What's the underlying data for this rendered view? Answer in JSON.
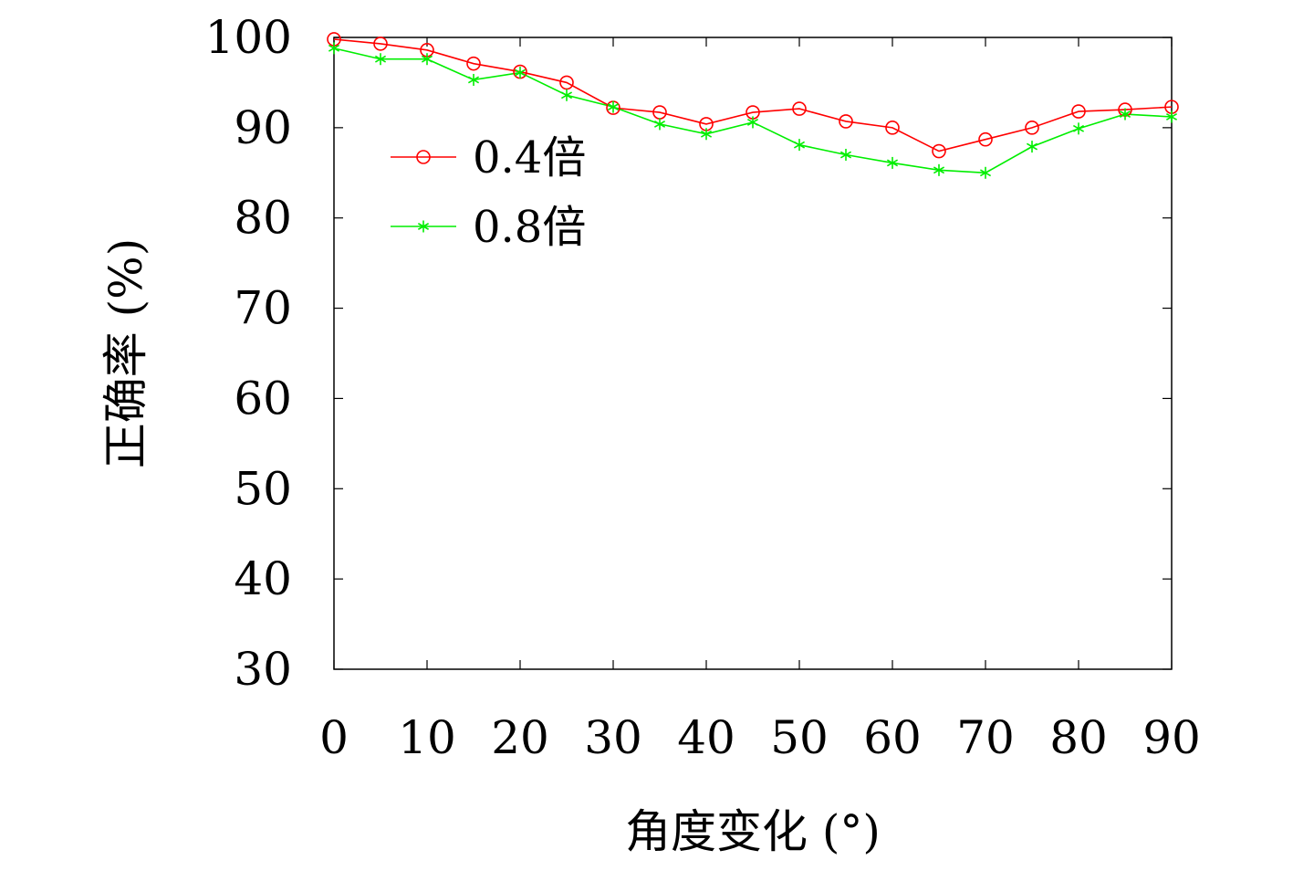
{
  "chart_data": {
    "type": "line",
    "title": "",
    "xlabel": "角度变化 (°)",
    "ylabel": "正确率 (%)",
    "xlim": [
      0,
      90
    ],
    "ylim": [
      30,
      100
    ],
    "xticks": [
      0,
      10,
      20,
      30,
      40,
      50,
      60,
      70,
      80,
      90
    ],
    "yticks": [
      30,
      40,
      50,
      60,
      70,
      80,
      90,
      100
    ],
    "grid": false,
    "legend_position": "upper-left",
    "x": [
      0,
      5,
      10,
      15,
      20,
      25,
      30,
      35,
      40,
      45,
      50,
      55,
      60,
      65,
      70,
      75,
      80,
      85,
      90
    ],
    "series": [
      {
        "name": "0.4倍",
        "color": "#ff0000",
        "marker": "circle",
        "values": [
          99.8,
          99.3,
          98.6,
          97.1,
          96.2,
          95.0,
          92.2,
          91.7,
          90.4,
          91.7,
          92.1,
          90.7,
          90.0,
          87.4,
          88.7,
          90.0,
          91.8,
          92.0,
          92.3
        ]
      },
      {
        "name": "0.8倍",
        "color": "#00ee00",
        "marker": "asterisk",
        "values": [
          98.8,
          97.6,
          97.6,
          95.3,
          96.1,
          93.6,
          92.3,
          90.4,
          89.3,
          90.6,
          88.1,
          87.0,
          86.1,
          85.3,
          85.0,
          87.9,
          89.9,
          91.5,
          91.2
        ]
      }
    ]
  }
}
